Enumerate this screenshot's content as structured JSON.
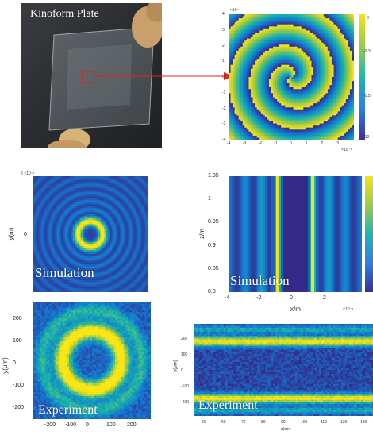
{
  "photo": {
    "title": "Kinoform Plate"
  },
  "phase_map": {
    "exp_label": "×10⁻⁴",
    "xticks": [
      "-4",
      "-3",
      "-2",
      "-1",
      "0",
      "1",
      "2",
      "3"
    ],
    "yticks": [
      "4",
      "3",
      "2",
      "1",
      "0",
      "-1",
      "-2",
      "-3",
      "-4"
    ],
    "x_exp": "×10⁻⁴",
    "cbar_ticks": [
      "3",
      "-0.3",
      "-0.5",
      "-10"
    ]
  },
  "sim_ring": {
    "label": "Simulation",
    "exp_label": "5 ×10⁻⁴",
    "ylabel": "y(m)",
    "ytick": "0"
  },
  "exp_ring": {
    "label": "Experiment",
    "ylabel": "y(μm)",
    "yticks": [
      "200",
      "100",
      "0",
      "-100",
      "-200"
    ],
    "xticks": [
      "-200",
      "-100",
      "0",
      "100",
      "200"
    ]
  },
  "sim_prop": {
    "label": "Simulation",
    "ylabel": "z/m",
    "yticks": [
      "1.05",
      "1",
      "0.95",
      "0.9",
      "0.85",
      "0.8"
    ],
    "xticks": [
      "-4",
      "-2",
      "0",
      "2"
    ],
    "xlabel": "x/m",
    "x_exp": "×10⁻⁴"
  },
  "exp_prop": {
    "label": "Experiment",
    "ylabel": "x(μm)",
    "yticks": [
      "200",
      "100",
      "0",
      "-100",
      "-200"
    ],
    "xticks": [
      "50",
      "60",
      "70",
      "80",
      "90",
      "100",
      "110",
      "120",
      "130"
    ],
    "xlabel": "z(cm)"
  },
  "colors": {
    "parula_dark": "#3a2c9a",
    "parula_blue": "#2e7fe0",
    "parula_cyan": "#22b5b0",
    "parula_yellow": "#f4e21d",
    "arrow": "#e02222"
  }
}
